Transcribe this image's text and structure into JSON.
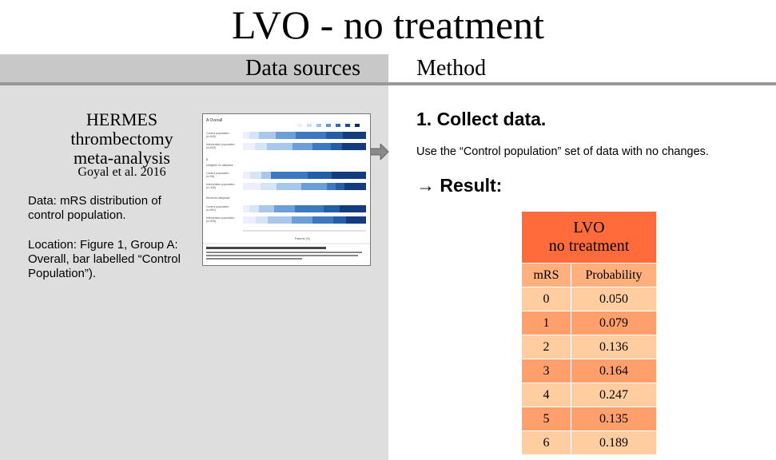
{
  "title": "LVO - no treatment",
  "headers": {
    "left": "Data sources",
    "right": "Method"
  },
  "source": {
    "title_lines": [
      "HERMES",
      "thrombectomy",
      "meta-analysis"
    ],
    "citation": "Goyal et al. 2016",
    "data_note": "Data: mRS distribution of control population.",
    "location_note": "Location: Figure 1, Group A: Overall, bar labelled “Control Population”)."
  },
  "method": {
    "step": "1. Collect data.",
    "step_desc": "Use the “Control population” set of data with no changes.",
    "result_label": "→ Result:"
  },
  "table": {
    "caption_lines": [
      "LVO",
      "no treatment"
    ],
    "col_headers": [
      "mRS",
      "Probability"
    ],
    "rows": [
      {
        "mrs": "0",
        "prob": "0.050"
      },
      {
        "mrs": "1",
        "prob": "0.079"
      },
      {
        "mrs": "2",
        "prob": "0.136"
      },
      {
        "mrs": "3",
        "prob": "0.164"
      },
      {
        "mrs": "4",
        "prob": "0.247"
      },
      {
        "mrs": "5",
        "prob": "0.135"
      },
      {
        "mrs": "6",
        "prob": "0.189"
      }
    ]
  }
}
